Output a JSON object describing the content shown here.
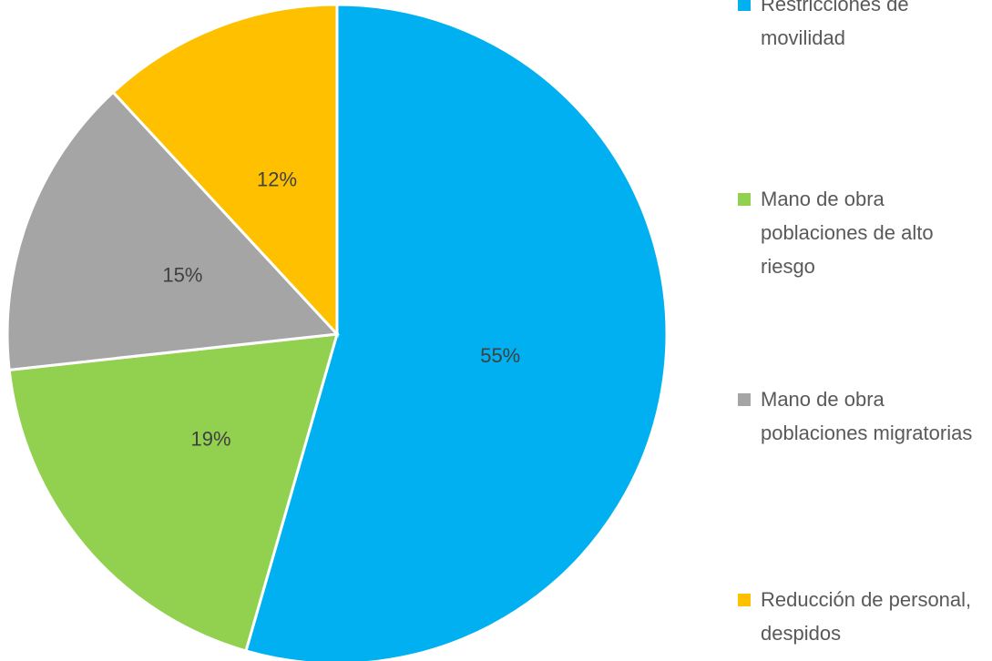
{
  "chart_data": {
    "type": "pie",
    "categories": [
      "Restricciones de movilidad",
      "Mano de obra poblaciones de alto riesgo",
      "Mano de obra poblaciones migratorias",
      "Reducción de personal, despidos"
    ],
    "values": [
      55,
      19,
      15,
      12
    ],
    "value_labels": [
      "55%",
      "19%",
      "15%",
      "12%"
    ],
    "colors": [
      "#00b0f0",
      "#92d050",
      "#a5a5a5",
      "#ffc000"
    ],
    "legend": "right"
  }
}
